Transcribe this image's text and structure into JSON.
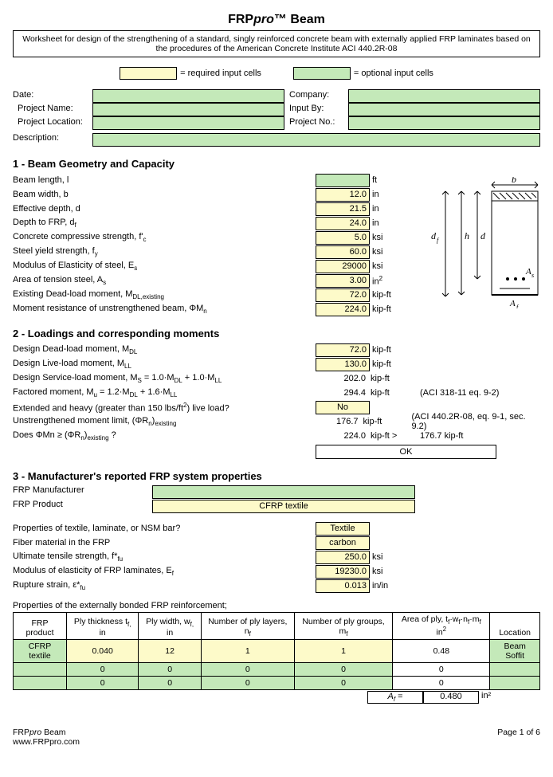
{
  "title_a": "FRP",
  "title_b": "pro",
  "title_c": "™ Beam",
  "description": "Worksheet for design of the strengthening of a standard, singly reinforced concrete beam with externally applied FRP laminates based on the procedures of the American Concrete Institute ACI 440.2R-08",
  "legend_req": "= required input cells",
  "legend_opt": "= optional input cells",
  "meta": {
    "date": "Date:",
    "company": "Company:",
    "pname": "Project Name:",
    "inputby": "Input By:",
    "ploc": "Project Location:",
    "pno": "Project No.:",
    "desc": "Description:"
  },
  "sec1": {
    "title": "1 - Beam Geometry and Capacity",
    "rows": [
      {
        "l": "Beam length, l",
        "v": "",
        "u": "ft",
        "cls": "grn"
      },
      {
        "l": "Beam width, b",
        "v": "12.0",
        "u": "in",
        "cls": "yes"
      },
      {
        "l": "Effective depth, d",
        "v": "21.5",
        "u": "in",
        "cls": "yes"
      },
      {
        "l": "Depth to FRP, d_f",
        "v": "24.0",
        "u": "in",
        "cls": "yes"
      },
      {
        "l": "Concrete compressive strength, f'_c",
        "v": "5.0",
        "u": "ksi",
        "cls": "yes"
      },
      {
        "l": "Steel yield strength, f_y",
        "v": "60.0",
        "u": "ksi",
        "cls": "yes"
      },
      {
        "l": "Modulus of Elasticity of steel, E_s",
        "v": "29000",
        "u": "ksi",
        "cls": "yes"
      },
      {
        "l": "Area of tension steel, A_s",
        "v": "3.00",
        "u": "in²",
        "cls": "yes"
      },
      {
        "l": "Existing Dead-load moment, M_DL,existing",
        "v": "72.0",
        "u": "kip-ft",
        "cls": "yes"
      },
      {
        "l": "Moment resistance of unstrengthened beam, ΦM_n",
        "v": "224.0",
        "u": "kip-ft",
        "cls": "yes"
      }
    ]
  },
  "sec2": {
    "title": "2 - Loadings and corresponding moments",
    "rows": [
      {
        "l": "Design Dead-load moment, M_DL",
        "v": "72.0",
        "u": "kip-ft",
        "cls": "yes",
        "box": true
      },
      {
        "l": "Design Live-load moment, M_LL",
        "v": "130.0",
        "u": "kip-ft",
        "cls": "yes",
        "box": true
      },
      {
        "l": "Design Service-load moment, M_S = 1.0·M_DL + 1.0·M_LL",
        "v": "202.0",
        "u": "kip-ft",
        "box": false
      },
      {
        "l": "Factored moment, M_u = 1.2·M_DL + 1.6·M_LL",
        "v": "294.4",
        "u": "kip-ft",
        "box": false,
        "note": "(ACI 318-11 eq. 9-2)"
      },
      {
        "l": "Extended and heavy (greater than 150 lbs/ft²) live load?",
        "v": "No",
        "u": "",
        "cls": "yes",
        "box": true,
        "center": true
      },
      {
        "l": "Unstrengthened moment limit, (ΦR_n)_existing",
        "v": "176.7",
        "u": "kip-ft",
        "box": false,
        "note": "(ACI 440.2R-08, eq. 9-1, sec. 9.2)"
      },
      {
        "l": "Does ΦMn ≥ (ΦR_n)_existing ?",
        "v": "224.0",
        "u": "kip-ft >",
        "box": false,
        "after": "176.7 kip-ft"
      }
    ],
    "ok": "OK"
  },
  "sec3": {
    "title": "3 - Manufacturer's reported FRP system properties",
    "mfr": "FRP Manufacturer",
    "mfr_v": "",
    "prod": "FRP Product",
    "prod_v": "CFRP textile",
    "rows": [
      {
        "l": "Properties of textile, laminate, or NSM bar?",
        "v": "Textile",
        "u": "",
        "cls": "yes",
        "center": true
      },
      {
        "l": "Fiber material in the FRP",
        "v": "carbon",
        "u": "",
        "cls": "yes",
        "center": true
      },
      {
        "l": "Ultimate tensile strength, f*_fu",
        "v": "250.0",
        "u": "ksi",
        "cls": "yes"
      },
      {
        "l": "Modulus of elasticity of FRP laminates, E_f",
        "v": "19230.0",
        "u": "ksi",
        "cls": "yes"
      },
      {
        "l": "Rupture strain, ε*_fu",
        "v": "0.013",
        "u": "in/in",
        "cls": "yes"
      }
    ],
    "tbl_caption": "Properties of the externally bonded FRP reinforcement;",
    "headers": [
      "FRP product",
      "Ply thickness t_f, in",
      "Ply width, w_f, in",
      "Number of ply layers, n_f",
      "Number of ply groups, m_f",
      "Area of ply, t_f·w_f·n_f·m_f in²",
      "Location"
    ],
    "rows_t": [
      [
        "CFRP textile",
        "0.040",
        "12",
        "1",
        "1",
        "0.48",
        "Beam Soffit"
      ],
      [
        "",
        "0",
        "0",
        "0",
        "0",
        "0",
        ""
      ],
      [
        "",
        "0",
        "0",
        "0",
        "0",
        "0",
        ""
      ]
    ],
    "total_l": "A_f =",
    "total_v": "0.480",
    "total_u": "in²"
  },
  "footer": {
    "l1": "FRPpro Beam",
    "l2": "www.FRPpro.com",
    "r": "Page 1 of 6"
  },
  "diagram": {
    "b": "b",
    "h": "h",
    "d": "d",
    "df": "d_f",
    "As": "A_s",
    "Af": "A_f"
  }
}
